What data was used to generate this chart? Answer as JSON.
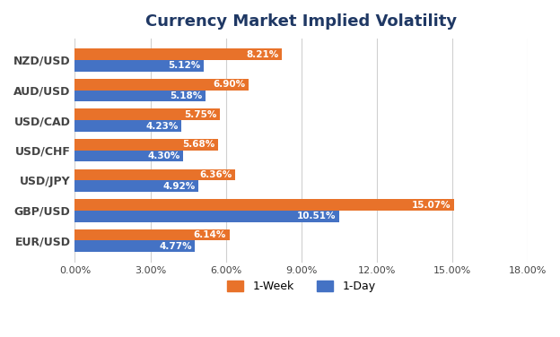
{
  "title": "Currency Market Implied Volatility",
  "categories": [
    "NZD/USD",
    "AUD/USD",
    "USD/CAD",
    "USD/CHF",
    "USD/JPY",
    "GBP/USD",
    "EUR/USD"
  ],
  "week1_values": [
    8.21,
    6.9,
    5.75,
    5.68,
    6.36,
    15.07,
    6.14
  ],
  "day1_values": [
    5.12,
    5.18,
    4.23,
    4.3,
    4.92,
    10.51,
    4.77
  ],
  "week1_labels": [
    "8.21%",
    "6.90%",
    "5.75%",
    "5.68%",
    "6.36%",
    "15.07%",
    "6.14%"
  ],
  "day1_labels": [
    "5.12%",
    "5.18%",
    "4.23%",
    "4.30%",
    "4.92%",
    "10.51%",
    "4.77%"
  ],
  "week1_color": "#E8722A",
  "day1_color": "#4472C4",
  "xlim": [
    0,
    18
  ],
  "xticks": [
    0,
    3,
    6,
    9,
    12,
    15,
    18
  ],
  "xtick_labels": [
    "0.00%",
    "3.00%",
    "6.00%",
    "9.00%",
    "12.00%",
    "15.00%",
    "18.00%"
  ],
  "background_color": "#FFFFFF",
  "title_color": "#1F3864",
  "label_color": "#FFFFFF",
  "title_fontsize": 13,
  "legend_labels": [
    "1-Week",
    "1-Day"
  ],
  "bar_height": 0.38,
  "grid_color": "#D0D0D0"
}
